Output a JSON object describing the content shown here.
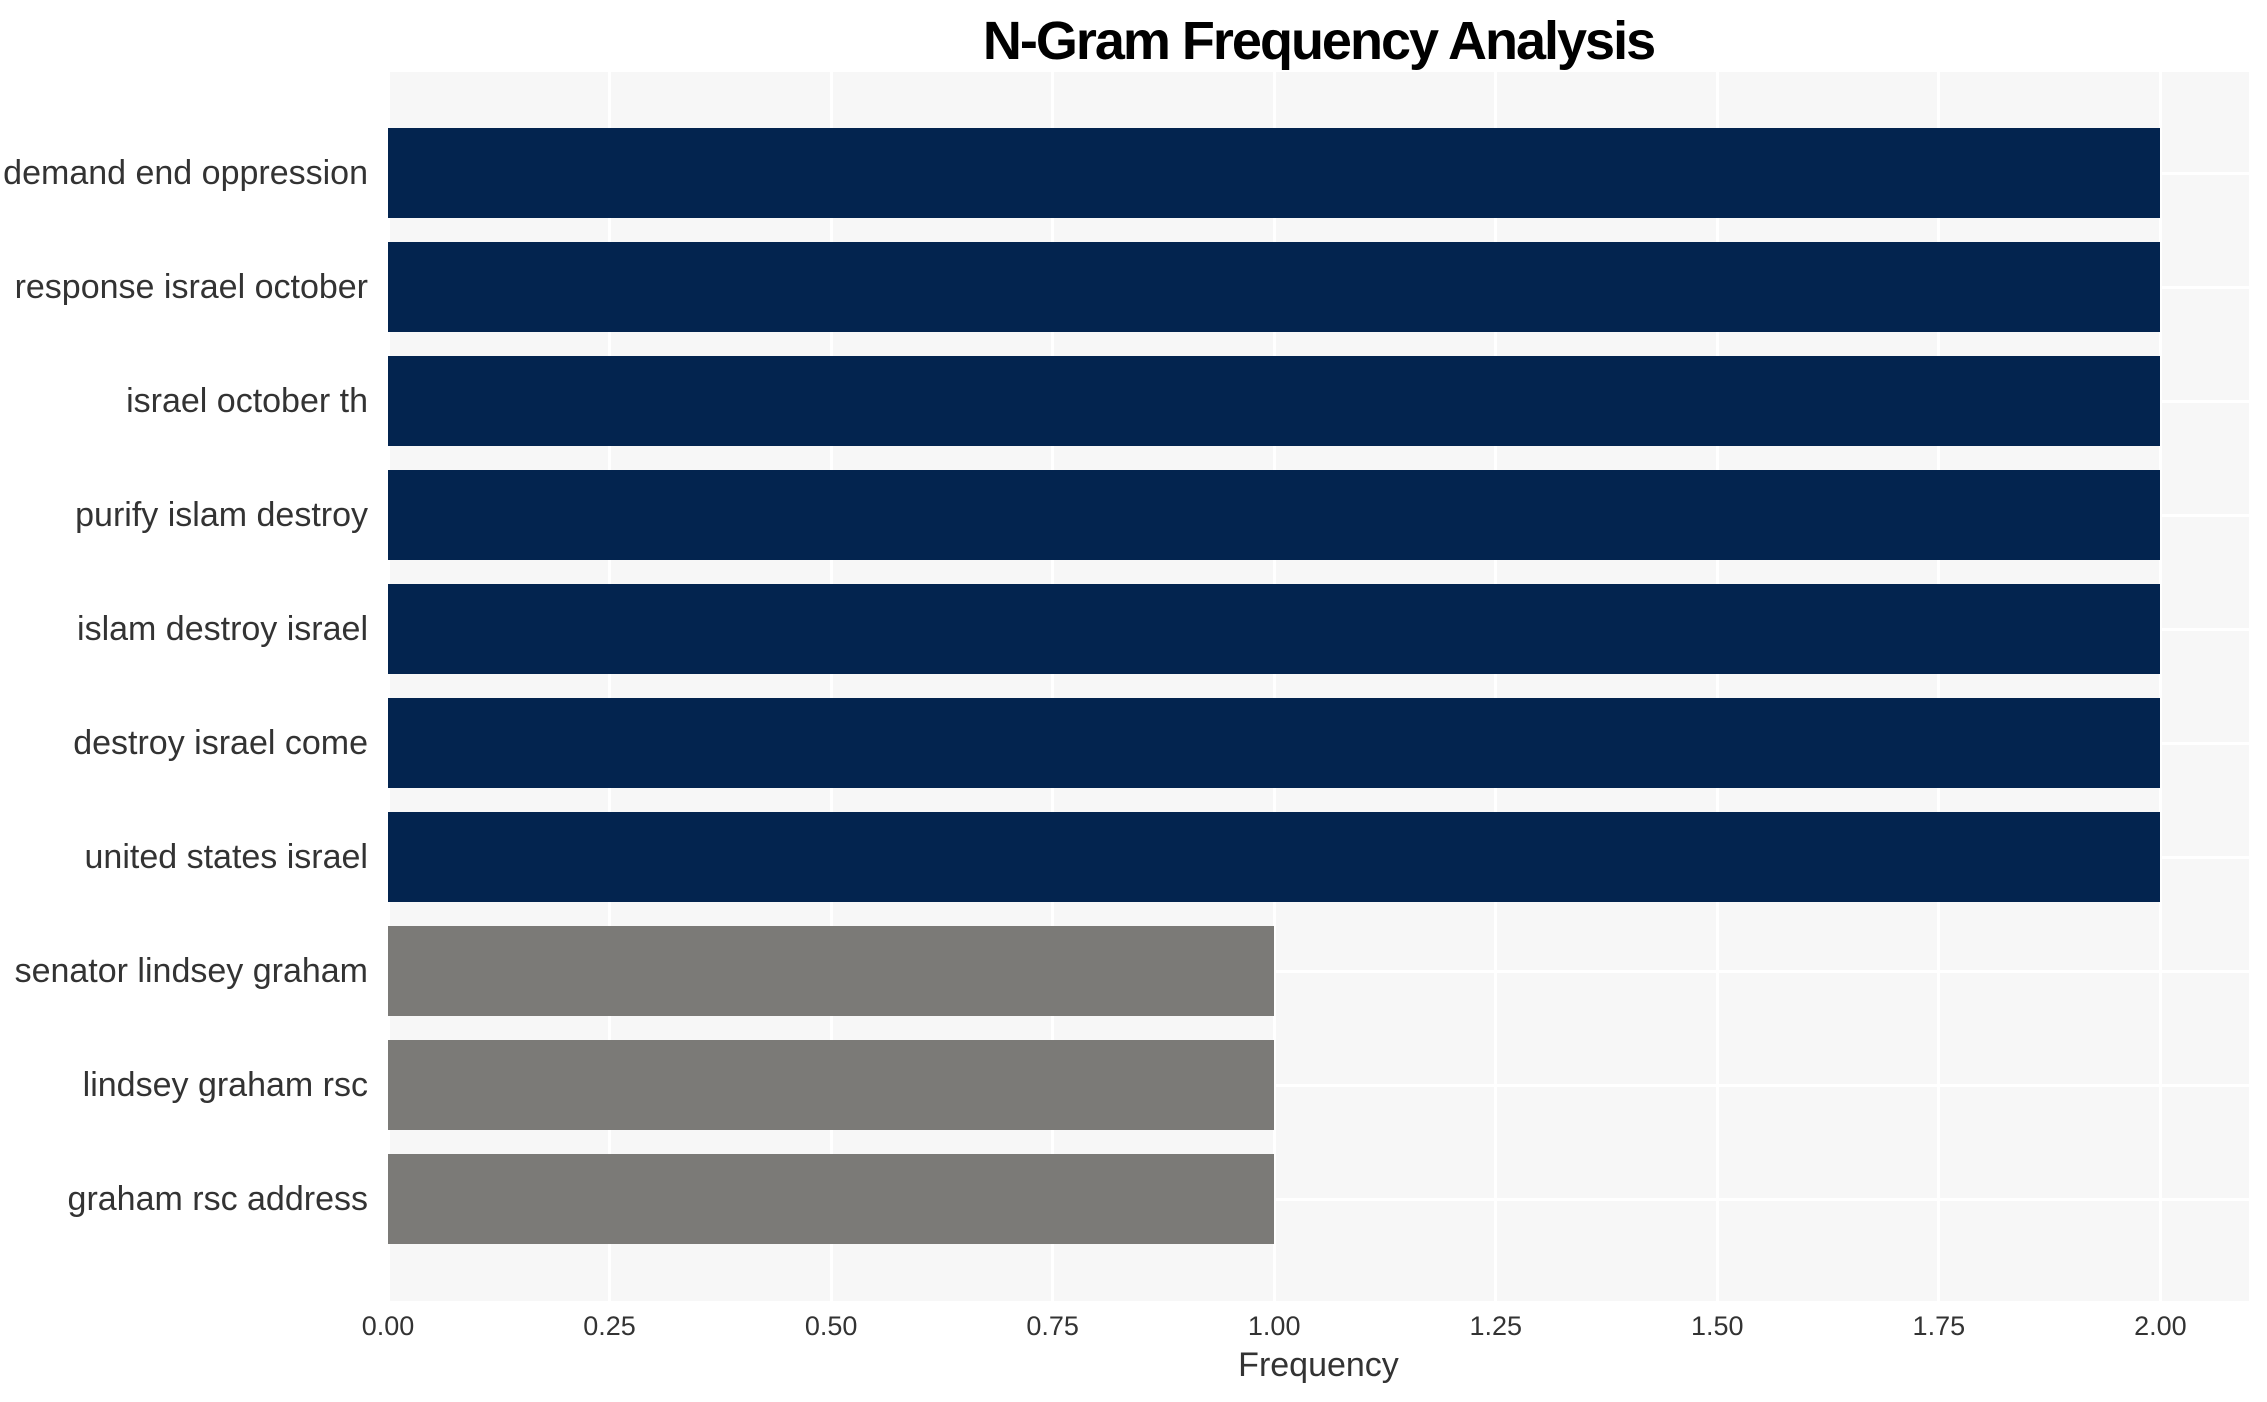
{
  "chart_data": {
    "type": "bar",
    "orientation": "horizontal",
    "title": "N-Gram Frequency Analysis",
    "xlabel": "Frequency",
    "ylabel": "",
    "categories": [
      "demand end oppression",
      "response israel october",
      "israel october th",
      "purify islam destroy",
      "islam destroy israel",
      "destroy israel come",
      "united states israel",
      "senator lindsey graham",
      "lindsey graham rsc",
      "graham rsc address"
    ],
    "values": [
      2,
      2,
      2,
      2,
      2,
      2,
      2,
      1,
      1,
      1
    ],
    "bar_colors": [
      "#03244f",
      "#03244f",
      "#03244f",
      "#03244f",
      "#03244f",
      "#03244f",
      "#03244f",
      "#7b7a77",
      "#7b7a77",
      "#7b7a77"
    ],
    "xticks": [
      "0.00",
      "0.25",
      "0.50",
      "0.75",
      "1.00",
      "1.25",
      "1.50",
      "1.75",
      "2.00"
    ],
    "xtick_values": [
      0,
      0.25,
      0.5,
      0.75,
      1.0,
      1.25,
      1.5,
      1.75,
      2.0
    ],
    "xlim": [
      0,
      2.1
    ],
    "grid": {
      "vertical": true,
      "horizontal": true,
      "color": "#ffffff"
    },
    "style": {
      "plot_background": "#f7f7f7",
      "figure_background": "#ffffff",
      "text_color": "#333333",
      "title_color": "#000000",
      "legend": "none"
    }
  }
}
